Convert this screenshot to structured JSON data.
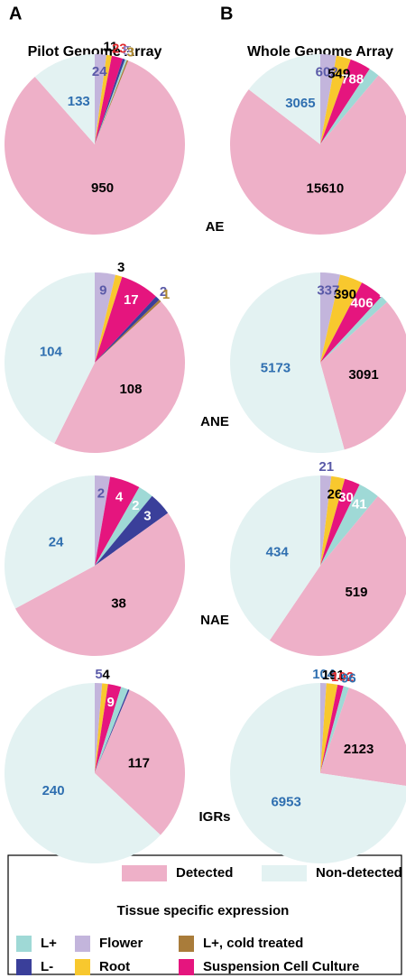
{
  "panels": [
    {
      "letter": "A",
      "title": "Pilot Genome Array"
    },
    {
      "letter": "B",
      "title": "Whole Genome Array"
    }
  ],
  "row_labels": [
    "AE",
    "ANE",
    "NAE",
    "IGRs"
  ],
  "legend": {
    "title": "Tissue specific expression",
    "items": [
      {
        "name": "Detected",
        "color": "#eeb0c8"
      },
      {
        "name": "Non-detected",
        "color": "#e3f2f2"
      },
      {
        "name": "L+",
        "color": "#9fd9d6"
      },
      {
        "name": "L-",
        "color": "#3a3f9a"
      },
      {
        "name": "Flower",
        "color": "#c3b5dc"
      },
      {
        "name": "Root",
        "color": "#f8c82e"
      },
      {
        "name": "L+, cold treated",
        "color": "#a97c3a"
      },
      {
        "name": "Suspension Cell Culture",
        "color": "#e5157e"
      }
    ]
  },
  "chart_data": [
    {
      "type": "pie",
      "categories": [
        "Flower",
        "Root",
        "Suspension Cell Culture",
        "L-",
        "L+",
        "L+, cold treated",
        "Detected",
        "Non-detected"
      ],
      "values": [
        24,
        11,
        23,
        5,
        4,
        3,
        950,
        133
      ],
      "label_colors": [
        "#5a5aa8",
        "#000000",
        "#e0282c",
        "#8a7cc0",
        "#ffffff",
        "#b08a2e",
        "#000000",
        "#2f6fb0"
      ]
    },
    {
      "type": "pie",
      "categories": [
        "Flower",
        "Root",
        "Suspension Cell Culture",
        "L-",
        "L+, cold treated",
        "Detected",
        "Non-detected"
      ],
      "values": [
        9,
        3,
        17,
        2,
        1,
        108,
        104
      ],
      "label_colors": [
        "#5a5aa8",
        "#000000",
        "#ffffff",
        "#5a5aa8",
        "#b08a2e",
        "#000000",
        "#2f6fb0"
      ]
    },
    {
      "type": "pie",
      "categories": [
        "Flower",
        "Suspension Cell Culture",
        "L+",
        "L-",
        "Detected",
        "Non-detected"
      ],
      "values": [
        2,
        4,
        2,
        3,
        38,
        24
      ],
      "label_colors": [
        "#5a5aa8",
        "#ffffff",
        "#ffffff",
        "#ffffff",
        "#000000",
        "#2f6fb0"
      ]
    },
    {
      "type": "pie",
      "categories": [
        "Flower",
        "Root",
        "Suspension Cell Culture",
        "L+",
        "L-",
        "Detected",
        "Non-detected"
      ],
      "values": [
        5,
        4,
        9,
        5,
        1,
        117,
        240
      ],
      "label_colors": [
        "#5a5aa8",
        "#000000",
        "#ffffff",
        "#ffffff",
        "#ffffff",
        "#000000",
        "#2f6fb0"
      ]
    },
    {
      "type": "pie",
      "categories": [
        "Flower",
        "Root",
        "Suspension Cell Culture",
        "L+",
        "Detected",
        "Non-detected"
      ],
      "values": [
        602,
        549,
        788,
        405,
        15610,
        3065
      ],
      "label_colors": [
        "#5a5aa8",
        "#000000",
        "#ffffff",
        "#ffffff",
        "#000000",
        "#2f6fb0"
      ]
    },
    {
      "type": "pie",
      "categories": [
        "Flower",
        "Root",
        "Suspension Cell Culture",
        "L+",
        "Detected",
        "Non-detected"
      ],
      "values": [
        337,
        390,
        406,
        129,
        3091,
        5173
      ],
      "label_colors": [
        "#5a5aa8",
        "#000000",
        "#ffffff",
        "#ffffff",
        "#000000",
        "#2f6fb0"
      ]
    },
    {
      "type": "pie",
      "categories": [
        "Flower",
        "Root",
        "Suspension Cell Culture",
        "L+",
        "Detected",
        "Non-detected"
      ],
      "values": [
        21,
        26,
        30,
        41,
        519,
        434
      ],
      "label_colors": [
        "#5a5aa8",
        "#000000",
        "#ffffff",
        "#ffffff",
        "#000000",
        "#2f6fb0"
      ]
    },
    {
      "type": "pie",
      "categories": [
        "Flower",
        "Root",
        "Suspension Cell Culture",
        "L+",
        "Detected",
        "Non-detected"
      ],
      "values": [
        104,
        191,
        102,
        96,
        2123,
        6953
      ],
      "label_colors": [
        "#2f6fb0",
        "#000000",
        "#e0282c",
        "#2f6fb0",
        "#000000",
        "#2f6fb0"
      ]
    }
  ]
}
